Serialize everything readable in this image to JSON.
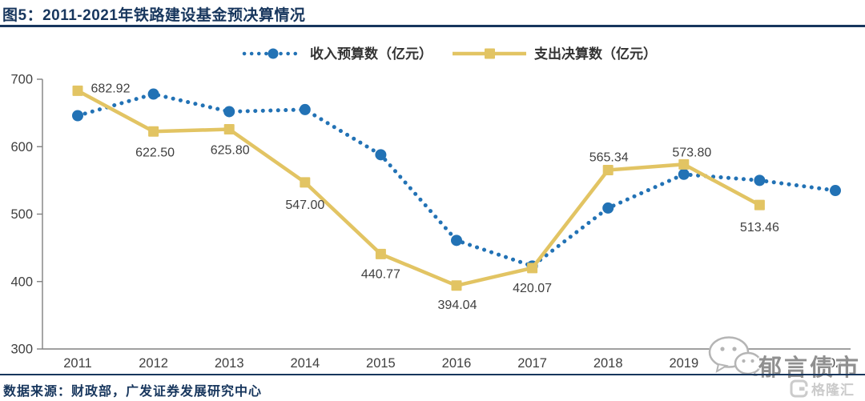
{
  "header": {
    "figure_label": "图5：",
    "title": "2011-2021年铁路建设基金预决算情况"
  },
  "chart_data": {
    "type": "line",
    "title": "2011-2021年铁路建设基金预决算情况",
    "categories": [
      "2011",
      "2012",
      "2013",
      "2014",
      "2015",
      "2016",
      "2017",
      "2018",
      "2019",
      "2020",
      "2021"
    ],
    "series": [
      {
        "name": "收入预算数（亿元）",
        "style": "dotted",
        "marker": "circle",
        "color": "#2272b5",
        "values": [
          646,
          678,
          652,
          655,
          588,
          461,
          423,
          509,
          559,
          550,
          535
        ]
      },
      {
        "name": "支出决算数（亿元）",
        "style": "solid",
        "marker": "square",
        "color": "#e2c463",
        "values": [
          682.92,
          622.5,
          625.8,
          547.0,
          440.77,
          394.04,
          420.07,
          565.34,
          573.8,
          513.46,
          null
        ],
        "labels": [
          "682.92",
          "622.50",
          "625.80",
          "547.00",
          "440.77",
          "394.04",
          "420.07",
          "565.34",
          "573.80",
          "513.46",
          ""
        ],
        "label_offsets": [
          [
            41,
            2
          ],
          [
            2,
            31
          ],
          [
            1,
            31
          ],
          [
            0,
            33
          ],
          [
            0,
            30
          ],
          [
            1,
            29
          ],
          [
            0,
            30
          ],
          [
            1,
            -11
          ],
          [
            10,
            -10
          ],
          [
            0,
            33
          ]
        ]
      }
    ],
    "xlabel": "",
    "ylabel": "",
    "ylim": [
      300,
      700
    ],
    "yticks": [
      300,
      400,
      500,
      600,
      700
    ],
    "grid": false,
    "legend_position": "top-center",
    "axis_color": "#808080",
    "tick_label_color": "#404040",
    "data_label_color": "#404040",
    "legend_text_color": "#333333"
  },
  "footer": {
    "source": "数据来源：财政部，广发证券发展研究中心"
  },
  "watermark": {
    "text": "郁言债市",
    "logo_text": "格隆汇"
  }
}
